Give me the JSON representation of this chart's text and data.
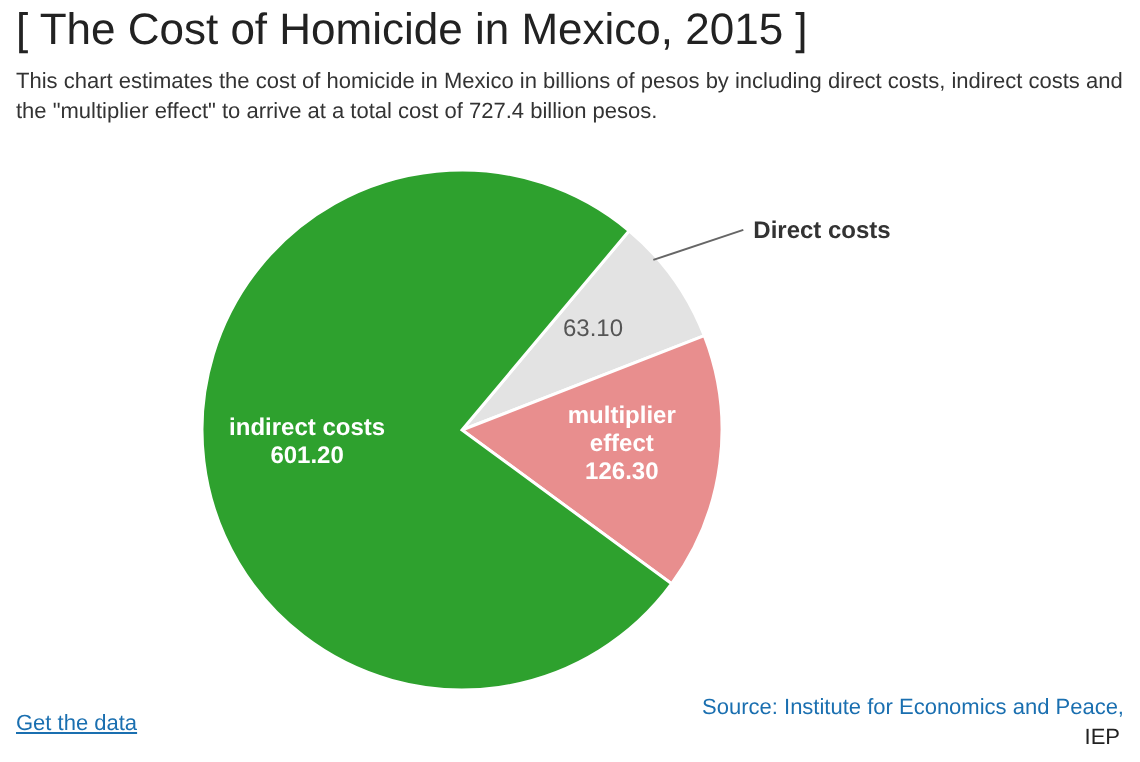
{
  "chart_data": {
    "type": "pie",
    "title": "[ The Cost of Homicide in Mexico, 2015 ]",
    "subtitle": "This chart estimates the cost of homicide in Mexico in billions of pesos by including direct costs, indirect costs and the \"multiplier effect\" to arrive at a total cost of 727.4 billion pesos.",
    "categories": [
      "Direct costs",
      "multiplier effect",
      "indirect costs"
    ],
    "values": [
      63.1,
      126.3,
      601.2
    ],
    "colors": [
      "#e3e3e3",
      "#e88e8e",
      "#2ea12e"
    ],
    "value_labels": [
      "63.10",
      "126.30",
      "601.20"
    ],
    "annotations": [
      "Source: Institute for Economics and Peace,",
      "Get the data",
      "IEP"
    ]
  }
}
